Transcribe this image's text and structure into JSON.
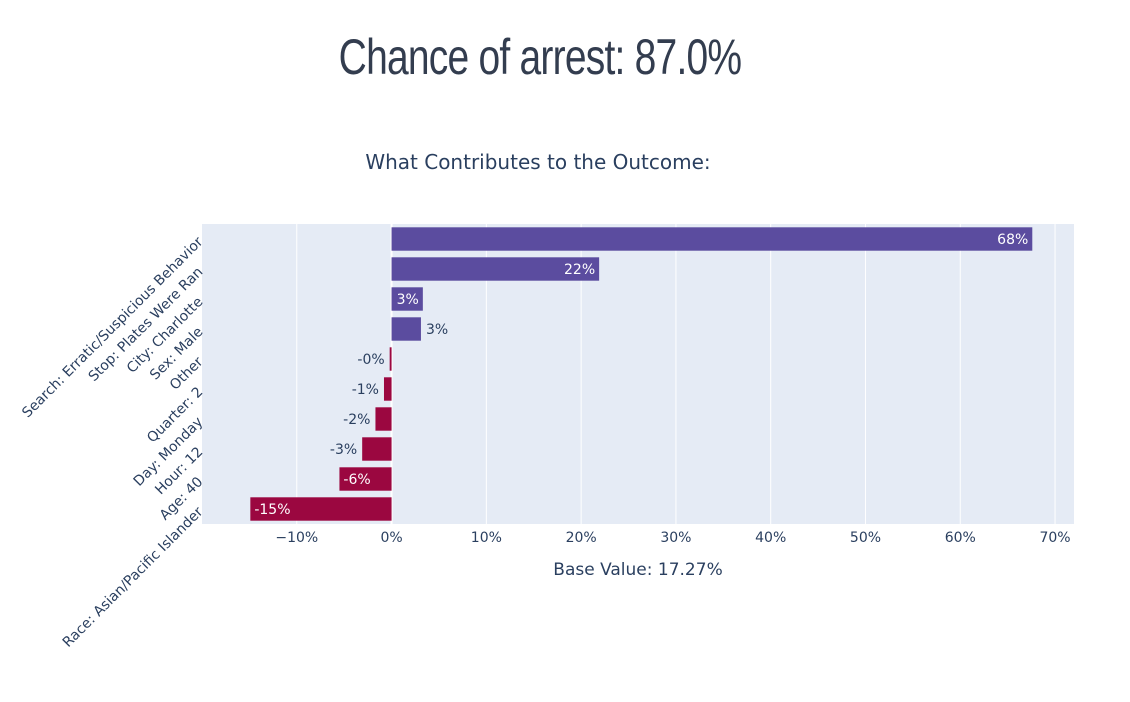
{
  "header": {
    "title": "Chance of arrest: 87.0%"
  },
  "colors": {
    "positive": "#5b4c9f",
    "negative": "#9b0740",
    "plot_bg": "#e5ebf5",
    "text": "#2a3f5f"
  },
  "chart_data": {
    "type": "bar",
    "orientation": "horizontal",
    "title": "What Contributes to the Outcome:",
    "xlabel": "Base Value: 17.27%",
    "ylabel": "",
    "xlim": [
      -20,
      72
    ],
    "xtick_values": [
      -10,
      0,
      10,
      20,
      30,
      40,
      50,
      60,
      70
    ],
    "xtick_labels": [
      "−10%",
      "0%",
      "10%",
      "20%",
      "30%",
      "40%",
      "50%",
      "60%",
      "70%"
    ],
    "grid": true,
    "categories": [
      "Search: Erratic/Suspicious Behavior",
      "Stop: Plates Were Ran",
      "City: Charlotte",
      "Sex: Male",
      "Other",
      "Quarter: 2",
      "Day: Monday",
      "Hour: 12",
      "Age: 40",
      "Race: Asian/Pacific Islander"
    ],
    "values": [
      67.6,
      21.9,
      3.3,
      3.1,
      -0.2,
      -0.8,
      -1.7,
      -3.1,
      -5.5,
      -14.9
    ],
    "data_labels": [
      "68%",
      "22%",
      "3%",
      "3%",
      "-0%",
      "-1%",
      "-2%",
      "-3%",
      "-6%",
      "-15%"
    ],
    "label_inside": [
      true,
      true,
      true,
      false,
      false,
      false,
      false,
      false,
      true,
      true
    ]
  }
}
